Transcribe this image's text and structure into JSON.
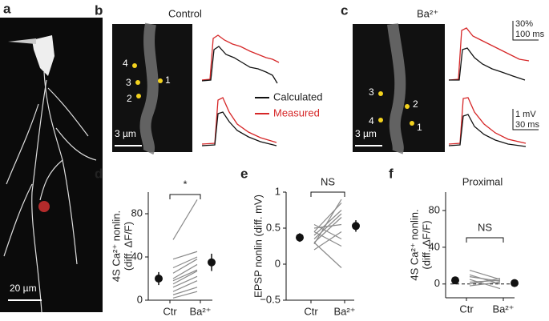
{
  "panel_labels": [
    "a",
    "b",
    "c",
    "d",
    "e",
    "f"
  ],
  "image_texts": {
    "control": "Control",
    "ba": "Ba²⁺",
    "scale_a": "20 µm",
    "scale_b": "3 µm",
    "scale_c": "3 µm",
    "legend_calc": "Calculated",
    "legend_meas": "Measured",
    "scale_pct": "30%",
    "scale_ms1": "100 ms",
    "scale_mv": "1 mV",
    "scale_ms2": "30 ms",
    "dots_b": [
      "4",
      "3",
      "2",
      "1"
    ],
    "dots_c": [
      "3",
      "2",
      "4",
      "1"
    ]
  },
  "chart_data": [
    {
      "type": "paired",
      "ylabel": [
        "4S Ca²⁺ nonlin.",
        "(diff. ΔF/F)"
      ],
      "categories": [
        "Ctr",
        "Ba²⁺"
      ],
      "ylim": [
        0,
        100
      ],
      "yticks": [
        0,
        40,
        80
      ],
      "annotation": "*",
      "line_color": "#8a8a8a",
      "mean_color": "#111",
      "series": [
        {
          "values": [
            2,
            8
          ]
        },
        {
          "values": [
            5,
            12
          ]
        },
        {
          "values": [
            8,
            18
          ]
        },
        {
          "values": [
            12,
            22
          ]
        },
        {
          "values": [
            15,
            27
          ]
        },
        {
          "values": [
            18,
            28
          ]
        },
        {
          "values": [
            20,
            33
          ]
        },
        {
          "values": [
            25,
            38
          ]
        },
        {
          "values": [
            30,
            40
          ]
        },
        {
          "values": [
            38,
            45
          ]
        },
        {
          "values": [
            56,
            93
          ]
        }
      ],
      "means": [
        20,
        35
      ],
      "errors": [
        6,
        8
      ]
    },
    {
      "type": "paired",
      "ylabel": [
        "EPSP nonlin (diff. mV)"
      ],
      "categories": [
        "Ctr",
        "Ba²⁺"
      ],
      "ylim": [
        -0.5,
        1
      ],
      "yticks": [
        {
          "value": -0.5,
          "label": "−0.5"
        },
        0,
        0.5,
        1
      ],
      "annotation": "NS",
      "line_color": "#8a8a8a",
      "mean_color": "#111",
      "series": [
        {
          "values": [
            0.28,
            0.9
          ]
        },
        {
          "values": [
            0.45,
            0.85
          ]
        },
        {
          "values": [
            0.4,
            0.75
          ]
        },
        {
          "values": [
            0.35,
            0.7
          ]
        },
        {
          "values": [
            0.3,
            0.65
          ]
        },
        {
          "values": [
            0.5,
            0.55
          ]
        },
        {
          "values": [
            0.2,
            0.45
          ]
        },
        {
          "values": [
            0.55,
            0.35
          ]
        },
        {
          "values": [
            0.45,
            0.25
          ]
        },
        {
          "values": [
            0.3,
            -0.05
          ]
        }
      ],
      "means": [
        0.37,
        0.53
      ],
      "errors": [
        0.06,
        0.08
      ]
    },
    {
      "type": "paired",
      "title": "Proximal",
      "ylabel": [
        "4S Ca²⁺ nonlin.",
        "(diff. ΔF/F)"
      ],
      "categories": [
        "Ctr",
        "Ba²⁺"
      ],
      "ylim": [
        -15,
        100
      ],
      "yticks": [
        0,
        40,
        80
      ],
      "annotation": "NS",
      "zero_line": true,
      "line_color": "#8a8a8a",
      "mean_color": "#111",
      "series": [
        {
          "values": [
            15,
            5
          ]
        },
        {
          "values": [
            10,
            0
          ]
        },
        {
          "values": [
            8,
            3
          ]
        },
        {
          "values": [
            5,
            -5
          ]
        },
        {
          "values": [
            2,
            4
          ]
        },
        {
          "values": [
            0,
            6
          ]
        },
        {
          "values": [
            -2,
            2
          ]
        }
      ],
      "means": [
        4,
        1
      ],
      "errors": [
        2,
        2
      ]
    }
  ]
}
